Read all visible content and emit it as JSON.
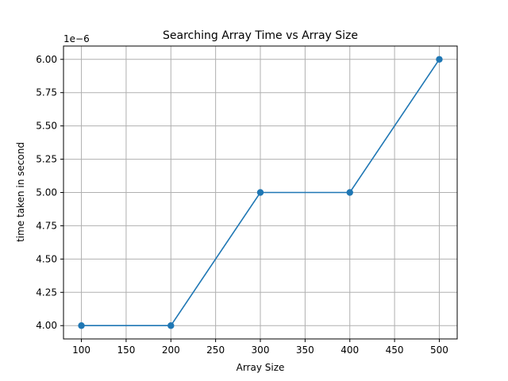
{
  "chart_data": {
    "type": "line",
    "title": "Searching Array Time vs Array Size",
    "xlabel": "Array Size",
    "ylabel": "time taken in second",
    "y_offset_label": "1e−6",
    "x": [
      100,
      200,
      300,
      400,
      500
    ],
    "series": [
      {
        "values": [
          4.0,
          4.0,
          5.0,
          5.0,
          6.0
        ],
        "color": "#1f77b4",
        "marker": "circle"
      }
    ],
    "xlim": [
      80,
      520
    ],
    "ylim": [
      3.9,
      6.1
    ],
    "x_ticks": [
      100,
      150,
      200,
      250,
      300,
      350,
      400,
      450,
      500
    ],
    "x_tick_labels": [
      "100",
      "150",
      "200",
      "250",
      "300",
      "350",
      "400",
      "450",
      "500"
    ],
    "y_ticks": [
      4.0,
      4.25,
      4.5,
      4.75,
      5.0,
      5.25,
      5.5,
      5.75,
      6.0
    ],
    "y_tick_labels": [
      "4.00",
      "4.25",
      "4.50",
      "4.75",
      "5.00",
      "5.25",
      "5.50",
      "5.75",
      "6.00"
    ],
    "grid": true,
    "grid_color": "#b0b0b0",
    "legend": "none"
  }
}
